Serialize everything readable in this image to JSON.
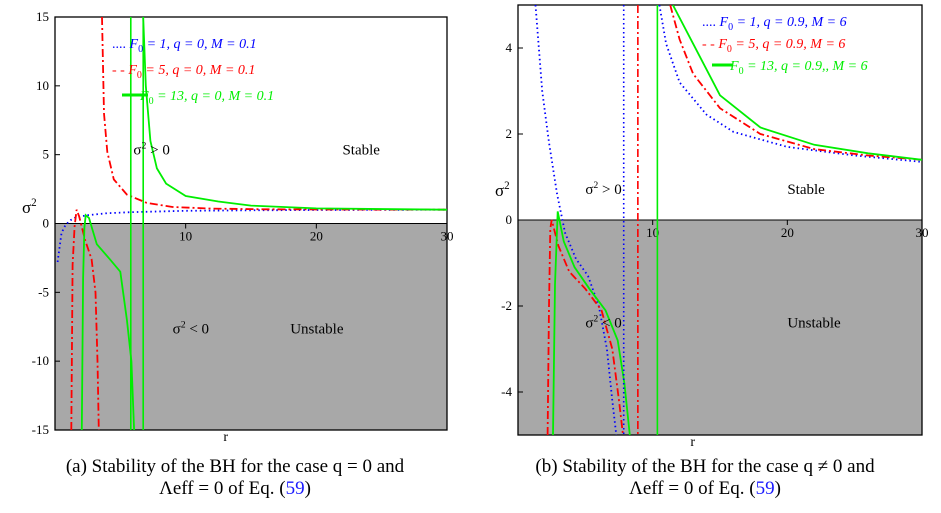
{
  "chart_data": [
    {
      "type": "line",
      "xlabel": "r",
      "ylabel": "σ2",
      "xlim": [
        0,
        30
      ],
      "ylim": [
        -15,
        15
      ],
      "x_ticks": [
        10,
        20,
        30
      ],
      "y_ticks": [
        -15,
        -10,
        -5,
        0,
        5,
        10,
        15
      ],
      "x_tick_labels": [
        "10",
        "20",
        "30"
      ],
      "y_tick_labels": [
        "-15",
        "-10",
        "-5",
        "0",
        "5",
        "10",
        "15"
      ],
      "grid": false,
      "legend_placement": "top-right",
      "shaded_region": {
        "from_y": 0,
        "to_y": -15,
        "color": "#a8a8a8"
      },
      "annotations": [
        {
          "text": "σ2 > 0",
          "at": [
            3,
            5
          ]
        },
        {
          "text": "Stable",
          "at": [
            22,
            5
          ]
        },
        {
          "text": "σ2 < 0",
          "at": [
            6,
            -8
          ]
        },
        {
          "text": "Unstable",
          "at": [
            18,
            -8
          ]
        }
      ],
      "series": [
        {
          "name": "F0 = 1, q = 0, M = 0.1",
          "legend_prefix": "....",
          "color": "#0000ff",
          "style": "dotted",
          "segments": [
            [
              [
                0.2,
                -2.8
              ],
              [
                0.5,
                -0.7
              ],
              [
                0.8,
                -0.1
              ],
              [
                1.2,
                0.25
              ],
              [
                1.6,
                0.45
              ],
              [
                2.5,
                0.6
              ],
              [
                4,
                0.75
              ],
              [
                6,
                0.83
              ],
              [
                10,
                0.92
              ],
              [
                15,
                0.96
              ],
              [
                20,
                0.98
              ],
              [
                30,
                1.0
              ]
            ]
          ]
        },
        {
          "name": "F0 = 5, q = 0, M = 0.1",
          "legend_prefix": "- -",
          "color": "#ff0000",
          "style": "dashdot",
          "segments": [
            [
              [
                1.25,
                -15
              ],
              [
                1.35,
                -3
              ],
              [
                1.5,
                -0.2
              ],
              [
                1.65,
                1.0
              ],
              [
                1.85,
                0.5
              ],
              [
                2.3,
                -1.2
              ],
              [
                2.8,
                -2.6
              ],
              [
                3.1,
                -5
              ],
              [
                3.25,
                -10
              ],
              [
                3.35,
                -15
              ]
            ],
            [
              [
                3.6,
                15
              ],
              [
                3.75,
                8
              ],
              [
                4,
                5.2
              ],
              [
                4.5,
                3.2
              ],
              [
                5.5,
                2.1
              ],
              [
                7,
                1.5
              ],
              [
                9,
                1.2
              ],
              [
                12,
                1.08
              ],
              [
                16,
                1.03
              ],
              [
                30,
                1.0
              ]
            ]
          ]
        },
        {
          "name": "F0 = 13, q = 0, M = 0.1",
          "legend_prefix": "",
          "color": "#00ee00",
          "style": "solid",
          "segments": [
            [
              [
                2.05,
                -15
              ],
              [
                2.15,
                -4
              ],
              [
                2.25,
                -0.3
              ],
              [
                2.35,
                0.6
              ],
              [
                2.6,
                0.4
              ],
              [
                3.2,
                -1.5
              ],
              [
                4.2,
                -2.6
              ],
              [
                5.0,
                -3.5
              ],
              [
                5.5,
                -7
              ],
              [
                5.85,
                -10
              ],
              [
                6.05,
                -15
              ]
            ],
            [
              [
                6.75,
                15
              ],
              [
                6.95,
                10
              ],
              [
                7.3,
                6
              ],
              [
                7.8,
                4
              ],
              [
                8.5,
                2.9
              ],
              [
                10,
                2.0
              ],
              [
                12.5,
                1.6
              ],
              [
                15,
                1.3
              ],
              [
                20,
                1.1
              ],
              [
                30,
                1.0
              ]
            ]
          ]
        }
      ],
      "verticals": [
        {
          "color": "#00ee00",
          "style": "solid",
          "x": 5.8
        },
        {
          "color": "#00ee00",
          "style": "solid",
          "x": 6.75
        }
      ]
    },
    {
      "type": "line",
      "xlabel": "r",
      "ylabel": "σ2",
      "xlim": [
        0,
        30
      ],
      "ylim": [
        -5,
        5
      ],
      "x_ticks": [
        10,
        20,
        30
      ],
      "y_ticks": [
        -4,
        -2,
        0,
        2,
        4
      ],
      "x_tick_labels": [
        "10",
        "20",
        "30"
      ],
      "y_tick_labels": [
        "-4",
        "-2",
        "0",
        "2",
        "4"
      ],
      "grid": false,
      "legend_placement": "top-right",
      "shaded_region": {
        "from_y": 0,
        "to_y": -5,
        "color": "#a8a8a8"
      },
      "annotations": [
        {
          "text": "σ2 > 0",
          "at": [
            2,
            0.6
          ]
        },
        {
          "text": "Stable",
          "at": [
            20,
            0.6
          ]
        },
        {
          "text": "σ2 < 0",
          "at": [
            2,
            -2.5
          ]
        },
        {
          "text": "Unstable",
          "at": [
            20,
            -2.5
          ]
        }
      ],
      "series": [
        {
          "name": "F0 = 1, q = 0.9, M = 6",
          "legend_prefix": "....",
          "color": "#0000ff",
          "style": "dotted",
          "segments": [
            [
              [
                1.3,
                5
              ],
              [
                1.8,
                3
              ],
              [
                2.3,
                1.8
              ],
              [
                2.9,
                0.6
              ],
              [
                3.5,
                -0.3
              ],
              [
                4.3,
                -0.9
              ],
              [
                5.2,
                -1.3
              ],
              [
                6,
                -2.0
              ],
              [
                6.6,
                -3.0
              ],
              [
                7.0,
                -4.2
              ],
              [
                7.3,
                -5
              ]
            ],
            [
              [
                10.5,
                5
              ],
              [
                11,
                4.1
              ],
              [
                12,
                3.2
              ],
              [
                14,
                2.45
              ],
              [
                16,
                2.05
              ],
              [
                20,
                1.7
              ],
              [
                25,
                1.5
              ],
              [
                30,
                1.35
              ]
            ]
          ]
        },
        {
          "name": "F0 = 5, q = 0.9, M = 6",
          "legend_prefix": "- -",
          "color": "#ff0000",
          "style": "dashdot",
          "segments": [
            [
              [
                2.2,
                -5
              ],
              [
                2.3,
                -2
              ],
              [
                2.4,
                -0.2
              ],
              [
                2.5,
                0
              ],
              [
                3.0,
                -0.6
              ],
              [
                3.8,
                -1.2
              ],
              [
                5,
                -1.6
              ],
              [
                6.2,
                -2.1
              ],
              [
                7.0,
                -3.0
              ],
              [
                7.5,
                -4.2
              ],
              [
                7.8,
                -5
              ]
            ],
            [
              [
                11.3,
                5
              ],
              [
                12,
                4.2
              ],
              [
                13,
                3.4
              ],
              [
                15,
                2.6
              ],
              [
                18,
                2.0
              ],
              [
                22,
                1.65
              ],
              [
                26,
                1.5
              ],
              [
                30,
                1.4
              ]
            ]
          ]
        },
        {
          "name": "F0 = 13, q = 0.9,, M = 6",
          "legend_prefix": "",
          "color": "#00ee00",
          "style": "solid",
          "segments": [
            [
              [
                2.6,
                -5
              ],
              [
                2.75,
                -1.5
              ],
              [
                2.95,
                0.2
              ],
              [
                3.4,
                -0.5
              ],
              [
                4.2,
                -1.1
              ],
              [
                5.3,
                -1.6
              ],
              [
                6.5,
                -2.1
              ],
              [
                7.4,
                -2.8
              ],
              [
                7.9,
                -3.8
              ],
              [
                8.3,
                -5
              ]
            ],
            [
              [
                11.5,
                5
              ],
              [
                13,
                4.1
              ],
              [
                15,
                2.9
              ],
              [
                18,
                2.15
              ],
              [
                22,
                1.75
              ],
              [
                26,
                1.55
              ],
              [
                30,
                1.4
              ]
            ]
          ]
        }
      ],
      "verticals": [
        {
          "color": "#0000ff",
          "style": "dotted",
          "x": 7.85
        },
        {
          "color": "#ff0000",
          "style": "dashdot",
          "x": 8.9
        },
        {
          "color": "#00ee00",
          "style": "solid",
          "x": 10.35
        }
      ]
    }
  ],
  "captions": [
    {
      "prefix": "(a) Stability of the BH for the case q = 0 and",
      "line2_main": "Λeff = 0 of Eq. (",
      "ref": "59",
      "close": ")"
    },
    {
      "prefix": "(b) Stability of the BH for the case q ≠ 0 and",
      "line2_main": "Λeff = 0 of Eq. (",
      "ref": "59",
      "close": ")"
    }
  ]
}
